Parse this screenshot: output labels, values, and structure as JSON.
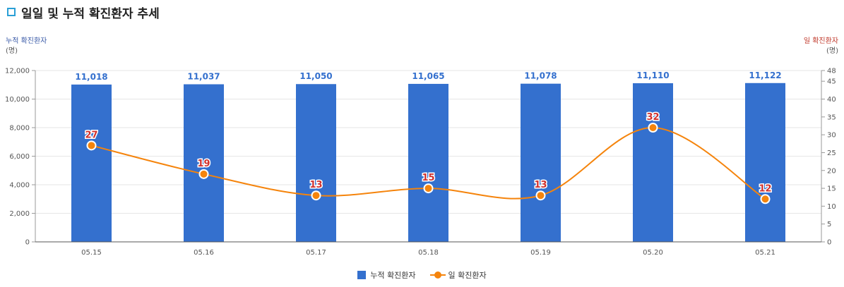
{
  "title": "일일 및 누적 확진환자 추세",
  "left_axis": {
    "label": "누적 확진환자",
    "unit": "(명)"
  },
  "right_axis": {
    "label": "일 확진환자",
    "unit": "(명)"
  },
  "colors": {
    "bar": "#3470ce",
    "line": "#f5840c",
    "bar_label": "#3470ce",
    "line_label": "#d0312d",
    "title_marker": "#2a9fd6"
  },
  "chart_data": {
    "type": "bar+line",
    "categories": [
      "05.15",
      "05.16",
      "05.17",
      "05.18",
      "05.19",
      "05.20",
      "05.21"
    ],
    "series": [
      {
        "name": "누적 확진환자",
        "type": "bar",
        "axis": "left",
        "values": [
          11018,
          11037,
          11050,
          11065,
          11078,
          11110,
          11122
        ],
        "labels": [
          "11,018",
          "11,037",
          "11,050",
          "11,065",
          "11,078",
          "11,110",
          "11,122"
        ]
      },
      {
        "name": "일 확진환자",
        "type": "line",
        "axis": "right",
        "values": [
          27,
          19,
          13,
          15,
          13,
          32,
          12
        ]
      }
    ],
    "left_ylim": [
      0,
      12000
    ],
    "left_ticks": [
      "0",
      "2,000",
      "4,000",
      "6,000",
      "8,000",
      "10,000",
      "12,000"
    ],
    "right_ylim": [
      0,
      48
    ],
    "right_ticks": [
      "0",
      "5",
      "10",
      "15",
      "20",
      "25",
      "30",
      "35",
      "40",
      "45",
      "48"
    ],
    "grid": true,
    "legend_position": "bottom"
  }
}
